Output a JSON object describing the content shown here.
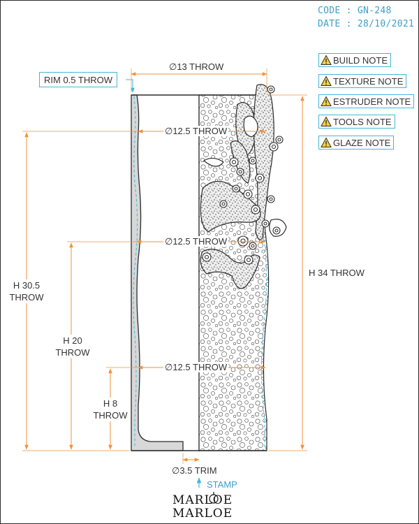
{
  "header": {
    "code": "CODE : GN-248",
    "date": "DATE : 28/10/2021"
  },
  "notes": [
    {
      "label": "BUILD NOTE"
    },
    {
      "label": "TEXTURE NOTE"
    },
    {
      "label": "ESTRUDER NOTE"
    },
    {
      "label": "TOOLS NOTE"
    },
    {
      "label": "GLAZE NOTE"
    }
  ],
  "dimensions": {
    "rim": "RIM 0.5 THROW",
    "top_diameter": "∅13 THROW",
    "diameter_upper": "∅12.5 THROW",
    "diameter_mid": "∅12.5 THROW",
    "diameter_lower": "∅12.5 THROW",
    "total_height": "H 34 THROW",
    "height_30_5": [
      "H 30.5",
      "THROW"
    ],
    "height_20": [
      "H 20",
      "THROW"
    ],
    "height_8": [
      "H 8",
      "THROW"
    ],
    "trim": "∅3.5 TRIM"
  },
  "stamp_label": "STAMP",
  "brand": {
    "logo_text": "MARLOE",
    "name": "MARLOE"
  },
  "colors": {
    "dimension_line": "#f0923a",
    "accent": "#44b7d8",
    "outline": "#2b2b2b",
    "wall_fill": "#d8d8d8",
    "warning": "#f4d03f"
  },
  "icons": {
    "note_icon": "warning-icon",
    "stamp_arrow": "arrow-up-icon"
  }
}
